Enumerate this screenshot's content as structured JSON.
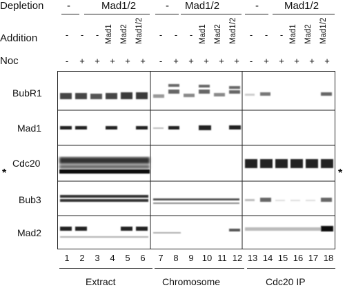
{
  "header": {
    "depletion_label": "Depletion",
    "addition_label": "Addition",
    "noc_label": "Noc",
    "depletion_minus": "-",
    "depletion_mad": "Mad1/2",
    "addition_values": [
      "-",
      "-",
      "-",
      "Mad1",
      "Mad2",
      "Mad1/2"
    ],
    "noc_values": [
      "-",
      "+",
      "+",
      "+",
      "+",
      "+"
    ]
  },
  "rows": [
    {
      "label": "BubR1"
    },
    {
      "label": "Mad1"
    },
    {
      "label": "Cdc20"
    },
    {
      "label": "Bub3"
    },
    {
      "label": "Mad2"
    }
  ],
  "asterisk": "*",
  "lanes": [
    "1",
    "2",
    "3",
    "4",
    "5",
    "6",
    "7",
    "8",
    "9",
    "10",
    "11",
    "12",
    "13",
    "14",
    "15",
    "16",
    "17",
    "18"
  ],
  "sections": [
    "Extract",
    "Chromosome",
    "Cdc20 IP"
  ]
}
